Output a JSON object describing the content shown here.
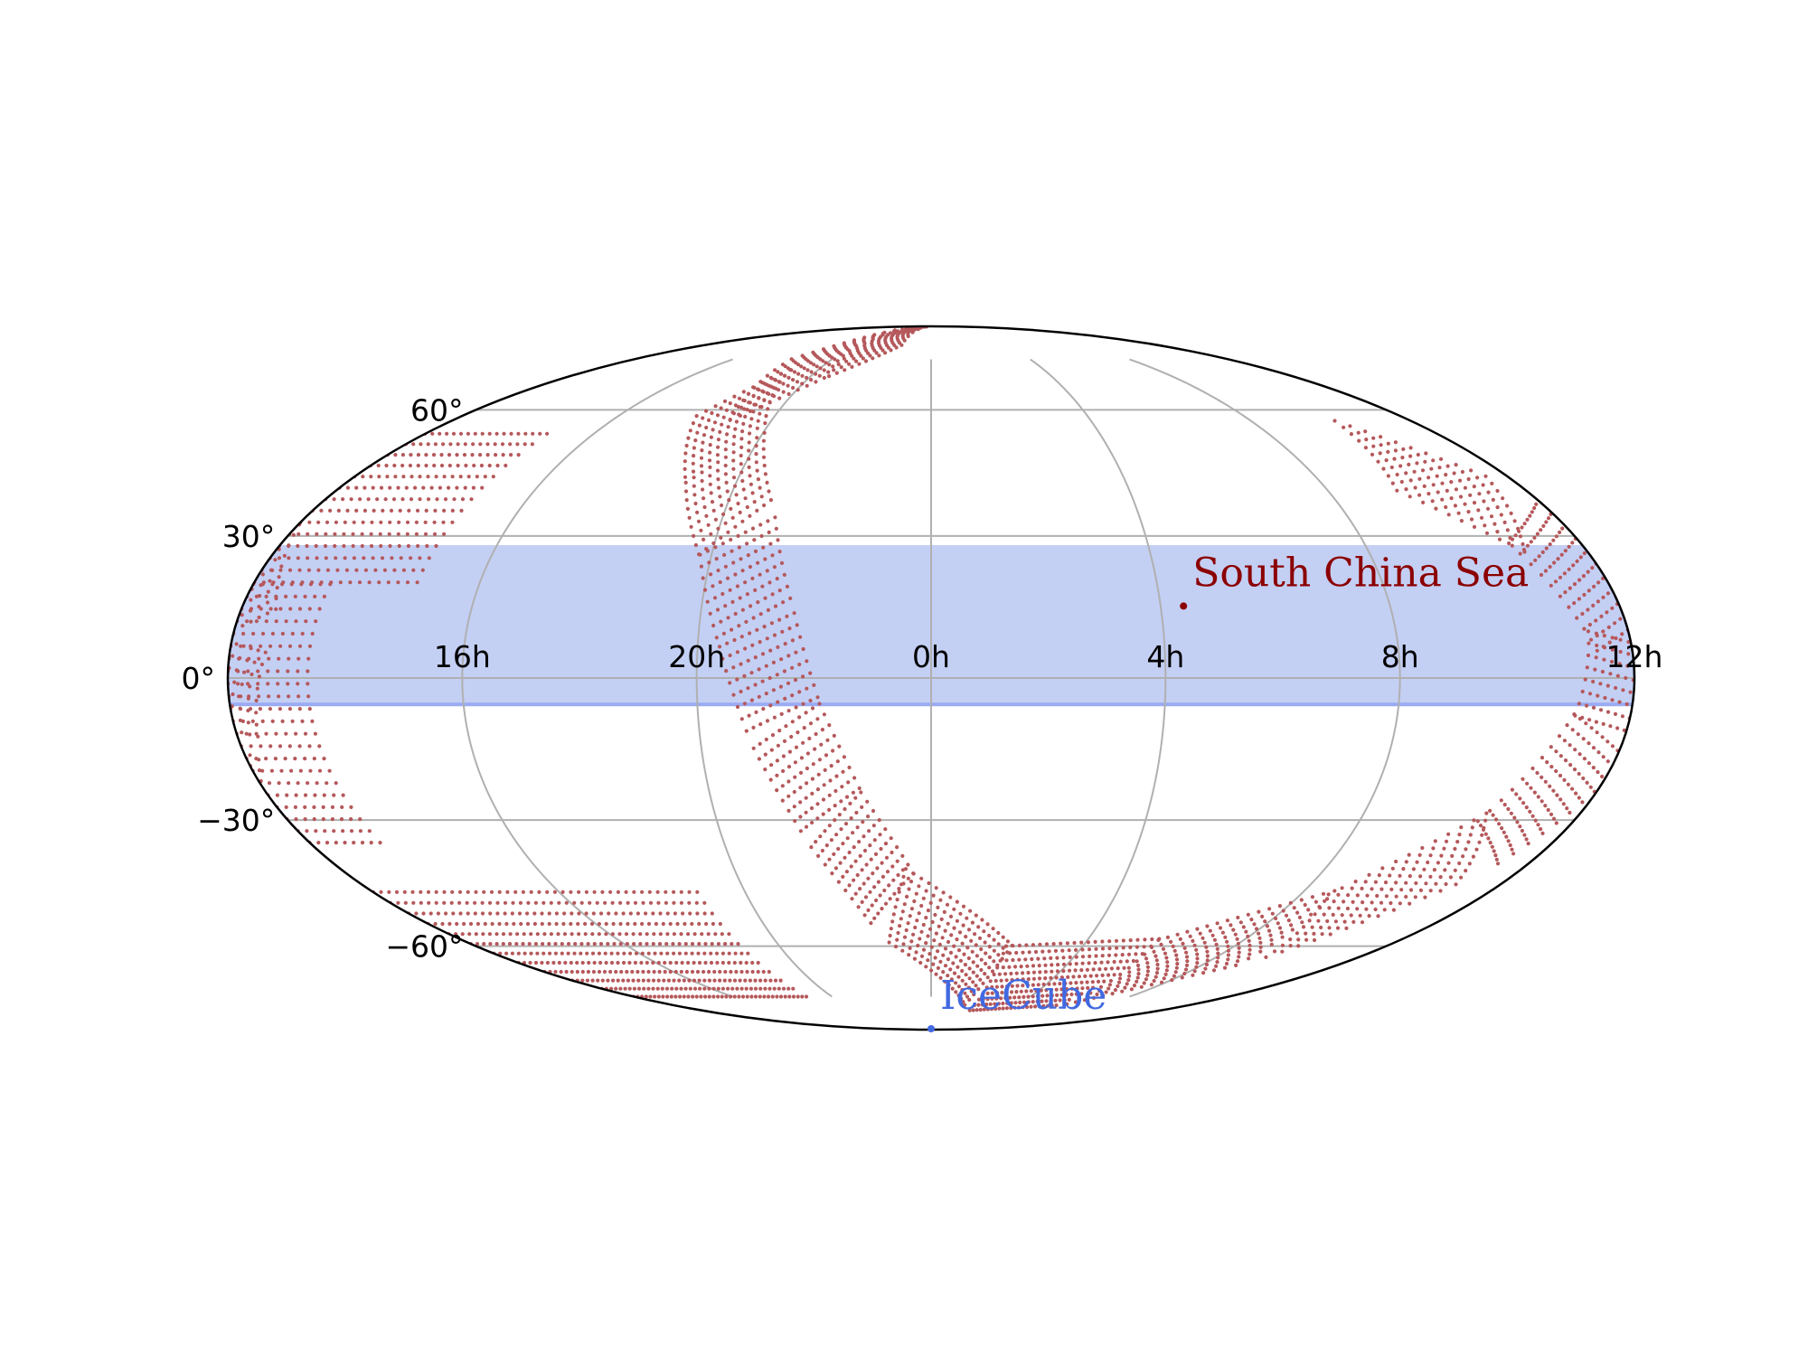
{
  "chart_data": {
    "type": "scatter",
    "projection": "mollweide",
    "grid": true,
    "legend": "none",
    "title": "",
    "xlabel": "",
    "ylabel": "",
    "xlim_hours": [
      -12,
      12
    ],
    "ylim_deg": [
      -90,
      90
    ],
    "ra_ticks": [
      {
        "hours": -8,
        "label": "16h"
      },
      {
        "hours": -4,
        "label": "20h"
      },
      {
        "hours": 0,
        "label": "0h"
      },
      {
        "hours": 4,
        "label": "4h"
      },
      {
        "hours": 8,
        "label": "8h"
      },
      {
        "hours": 12,
        "label": "12h"
      }
    ],
    "dec_ticks": [
      {
        "deg": 60,
        "label": "60$^\\circ$"
      },
      {
        "deg": 30,
        "label": "30$^\\circ$"
      },
      {
        "deg": 0,
        "label": "0$^\\circ$"
      },
      {
        "deg": -30,
        "label": "$-30^\\circ$"
      },
      {
        "deg": -60,
        "label": "$-60^\\circ$"
      }
    ],
    "dec_labels_display": [
      "60°",
      "30°",
      "0°",
      "−30°",
      "−60°"
    ],
    "shaded_band": {
      "dec_min": -5.5,
      "dec_max": 28,
      "color": "#c4cff4",
      "edge_color": "#9aabf3"
    },
    "sky_band": {
      "name": "",
      "color": "#b5585b",
      "center_path": [
        {
          "ra_h": -1.8,
          "dec": 89.5
        },
        {
          "ra_h": -3.8,
          "dec": 78.0
        },
        {
          "ra_h": -5.5,
          "dec": 65.0
        },
        {
          "ra_h": -4.5,
          "dec": 48.0
        },
        {
          "ra_h": -3.6,
          "dec": 30.0
        },
        {
          "ra_h": -3.0,
          "dec": 10.0
        },
        {
          "ra_h": -2.5,
          "dec": -10.0
        },
        {
          "ra_h": -1.8,
          "dec": -30.0
        },
        {
          "ra_h": -0.8,
          "dec": -50.0
        },
        {
          "ra_h": 2.0,
          "dec": -70.0
        },
        {
          "ra_h": 6.0,
          "dec": -68.0
        },
        {
          "ra_h": 9.0,
          "dec": -55.0
        },
        {
          "ra_h": 10.8,
          "dec": -35.0
        },
        {
          "ra_h": 11.7,
          "dec": -10.0
        },
        {
          "ra_h": 12.0,
          "dec": 10.0
        },
        {
          "ra_h": 11.2,
          "dec": 35.0
        },
        {
          "ra_h": 9.6,
          "dec": 50.0
        }
      ],
      "half_width_deg": 10,
      "wrapped_segments": [
        {
          "ra_from_h": -12.0,
          "ra_to_h": -9.0,
          "dec_from": 20.0,
          "dec_to": 55.0
        },
        {
          "ra_from_h": -12.0,
          "ra_to_h": -10.5,
          "dec_from": -35.0,
          "dec_to": 20.0
        },
        {
          "ra_from_h": -12.0,
          "ra_to_h": -5.0,
          "dec_from": -75.0,
          "dec_to": -45.0
        }
      ]
    },
    "sources": [
      {
        "name": "South China Sea",
        "ra_h": 4.4,
        "dec": 15.0,
        "color": "#8b0000"
      },
      {
        "name": "IceCube",
        "ra_h": 0.0,
        "dec": -89.0,
        "color": "#4169e1"
      }
    ]
  }
}
